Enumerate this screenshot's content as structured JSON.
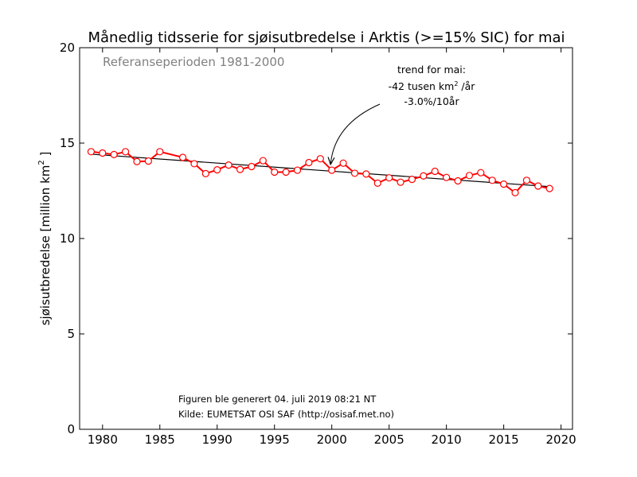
{
  "colors": {
    "series": "#ff0000",
    "trend": "#000000",
    "marker_fill": "#ffffff",
    "reference_text": "#808080"
  },
  "chart_data": {
    "type": "line",
    "title": "Månedlig tidsserie for sjøisutbredelse i Arktis (>=15% SIC) for mai",
    "xlabel": "",
    "ylabel_main": "sjøisutbredelse [million km",
    "ylabel_sup": "2",
    "ylabel_end": " ]",
    "xlim": [
      1978,
      2021
    ],
    "ylim": [
      0,
      20
    ],
    "x_ticks": [
      1980,
      1985,
      1990,
      1995,
      2000,
      2005,
      2010,
      2015,
      2020
    ],
    "y_ticks": [
      0,
      5,
      10,
      15,
      20
    ],
    "grid": false,
    "reference_period": "Referanseperioden 1981-2000",
    "trend_annotation": {
      "line1": "trend for mai:",
      "line2_pre": "-42 tusen km",
      "line2_sup": "2",
      "line2_post": " /år",
      "line3": "-3.0%/10år",
      "arrow_target": [
        1999.9,
        13.8
      ]
    },
    "footer": [
      "Figuren ble generert 04. juli 2019 08:21 NT",
      "Kilde: EUMETSAT OSI SAF (http://osisaf.met.no)"
    ],
    "series": [
      {
        "x": [
          1979,
          1980,
          1981,
          1982,
          1983,
          1984,
          1985,
          1987,
          1988,
          1989,
          1990,
          1991,
          1992,
          1993,
          1994,
          1995,
          1996,
          1997,
          1998,
          1999,
          2000,
          2001,
          2002,
          2003,
          2004,
          2005,
          2006,
          2007,
          2008,
          2009,
          2010,
          2011,
          2012,
          2013,
          2014,
          2015,
          2016,
          2017,
          2018,
          2019
        ],
        "y": [
          14.55,
          14.48,
          14.4,
          14.55,
          14.03,
          14.06,
          14.55,
          14.25,
          13.92,
          13.4,
          13.6,
          13.85,
          13.62,
          13.77,
          14.08,
          13.48,
          13.48,
          13.58,
          13.98,
          14.18,
          13.58,
          13.95,
          13.42,
          13.38,
          12.9,
          13.18,
          12.95,
          13.1,
          13.28,
          13.52,
          13.2,
          13.02,
          13.3,
          13.45,
          13.05,
          12.85,
          12.4,
          13.05,
          12.75,
          12.62
        ]
      }
    ],
    "trend_line": {
      "x": [
        1979,
        2019
      ],
      "y": [
        14.42,
        12.72
      ]
    }
  }
}
